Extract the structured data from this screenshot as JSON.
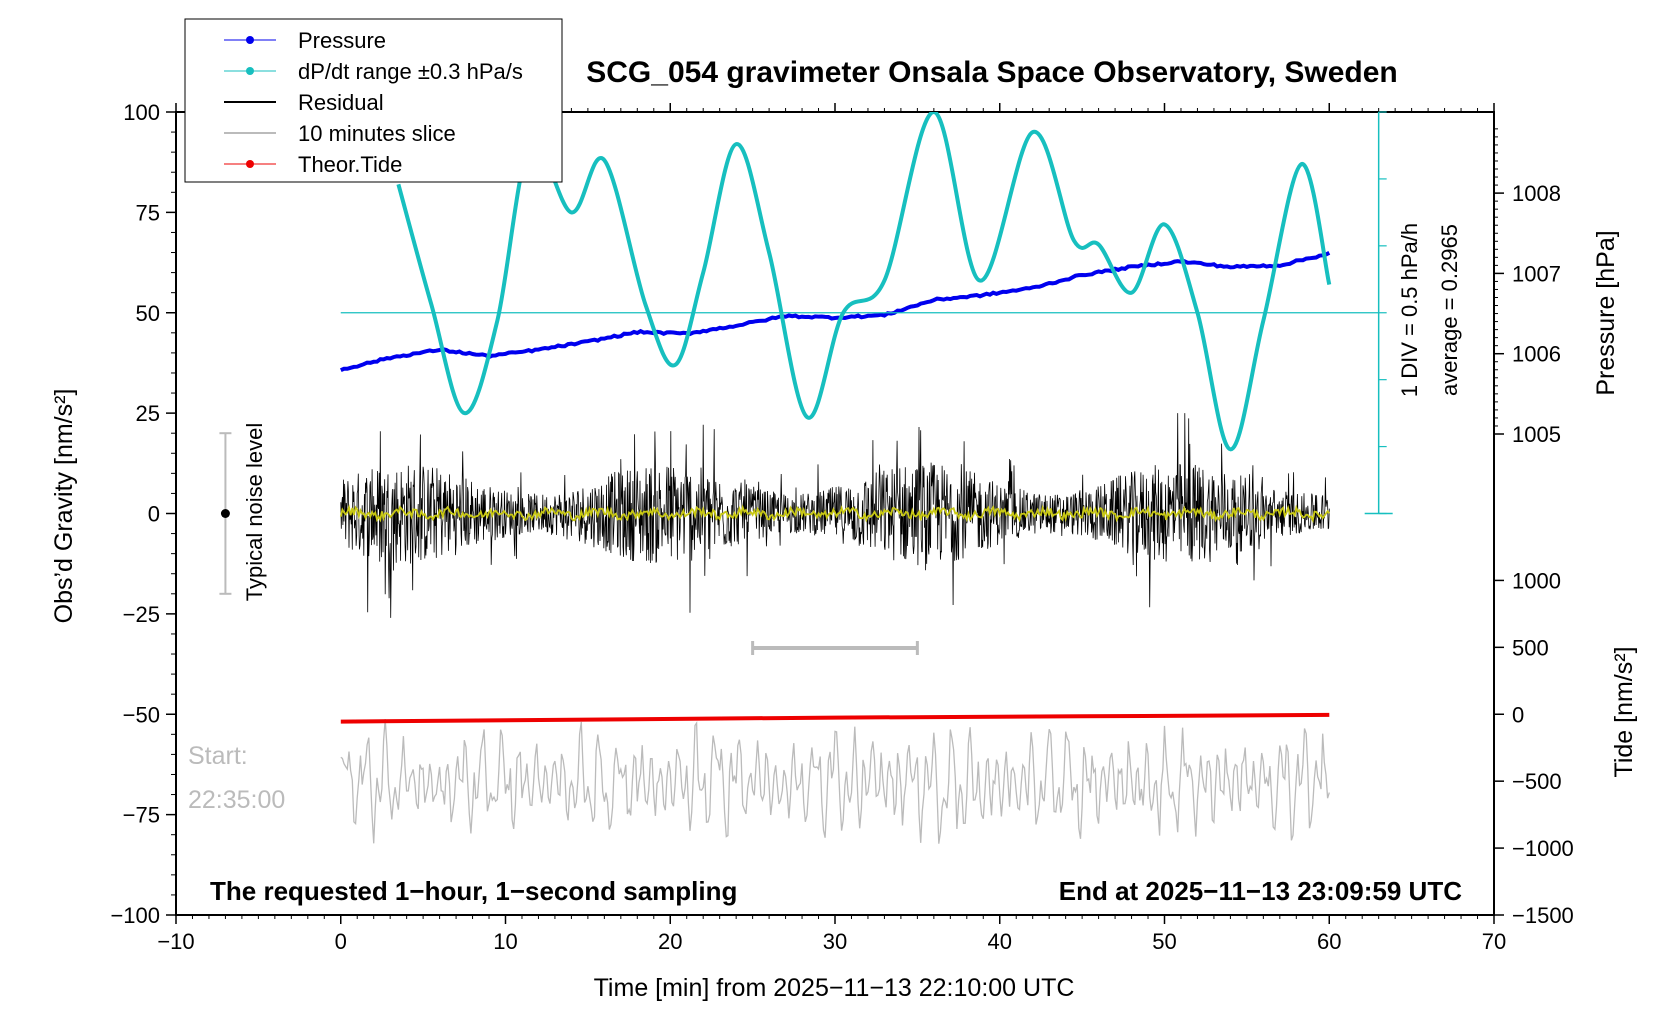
{
  "chart_data": {
    "type": "line",
    "title": "SCG_054 gravimeter Onsala Space Observatory, Sweden",
    "xlabel": "Time [min] from 2025−11−13 22:10:00 UTC",
    "ylabel_left": "Obs’d Gravity [nm/s²]",
    "ylabel_right_top": "Pressure [hPa]",
    "ylabel_right_bottom": "Tide [nm/s²]",
    "xlim": [
      -10,
      70
    ],
    "ylim": [
      -100,
      100
    ],
    "x_ticks": [
      "−10",
      "0",
      "10",
      "20",
      "30",
      "40",
      "50",
      "60",
      "70"
    ],
    "x_tick_values": [
      -10,
      0,
      10,
      20,
      30,
      40,
      50,
      60,
      70
    ],
    "y_ticks": [
      "100",
      "75",
      "50",
      "25",
      "0",
      "−25",
      "−50",
      "−75",
      "−100"
    ],
    "y_tick_values": [
      100,
      75,
      50,
      25,
      0,
      -25,
      -50,
      -75,
      -100
    ],
    "pressure_axis": {
      "ticks": [
        "1008",
        "1007",
        "1006",
        "1005"
      ],
      "tick_values": [
        1008,
        1007,
        1006,
        1005
      ],
      "map": {
        "hpa_a": 1005,
        "grav_a": 19.8,
        "hpa_b": 1008,
        "grav_b": 79.8
      }
    },
    "tide_axis": {
      "ticks": [
        "1000",
        "500",
        "0",
        "−500",
        "−1000",
        "−1500"
      ],
      "tick_values": [
        1000,
        500,
        0,
        -500,
        -1000,
        -1500
      ],
      "map": {
        "tide_a": 0,
        "grav_a": -50,
        "tide_b": -1500,
        "grav_b": -100
      }
    },
    "dpdt_scale": {
      "label_div": "1 DIV = 0.5 hPa/h",
      "label_avg": "average = 0.2965",
      "baseline": 50,
      "div_count": 6
    },
    "noise_bar": {
      "label": "Typical noise level",
      "x": -7,
      "low": -20,
      "high": 20,
      "center": 0
    },
    "slice_bar": {
      "x_start": 25,
      "x_end": 35,
      "y": -33.5
    },
    "series": [
      {
        "name": "Pressure",
        "unit": "hPa",
        "color": "#0000ee",
        "x": [
          0,
          3,
          6,
          9,
          12,
          15,
          18,
          21,
          24,
          27,
          30,
          33,
          36,
          39,
          42,
          45,
          48,
          51,
          54,
          57,
          60
        ],
        "values": [
          1005.8,
          1005.95,
          1006.05,
          1005.97,
          1006.05,
          1006.15,
          1006.27,
          1006.25,
          1006.35,
          1006.47,
          1006.45,
          1006.48,
          1006.67,
          1006.73,
          1006.82,
          1006.98,
          1007.08,
          1007.15,
          1007.08,
          1007.1,
          1007.25
        ]
      },
      {
        "name": "dP/dt range ±0.3 hPa/s",
        "color": "#17bfbf",
        "x": [
          3.5,
          5.5,
          7.5,
          9.5,
          11.5,
          14,
          16,
          18.5,
          20.3,
          22,
          24,
          26,
          28.3,
          30.5,
          33,
          36,
          38.8,
          42,
          44.5,
          46,
          48,
          50,
          52,
          54,
          56,
          58.3,
          60
        ],
        "values": [
          82,
          52,
          25,
          48,
          92,
          75,
          88,
          52,
          37,
          60,
          92,
          65,
          24,
          50,
          58,
          100,
          58,
          95,
          68,
          67,
          55,
          72,
          50,
          16,
          48,
          87,
          57
        ]
      },
      {
        "name": "Residual",
        "color": "#000000"
      },
      {
        "name": "10 minutes slice",
        "color": "#bbbbbb"
      },
      {
        "name": "Theor.Tide",
        "unit": "nm/s²",
        "color": "#ee0000",
        "x": [
          0,
          15,
          30,
          45,
          60
        ],
        "values": [
          -55,
          -40,
          -25,
          -15,
          -5
        ]
      }
    ],
    "annotations": {
      "bottom_left": "The requested 1−hour, 1−second sampling",
      "bottom_right": "End at 2025−11−13 23:09:59 UTC",
      "start_label": "Start:",
      "start_time": "22:35:00"
    },
    "colors": {
      "pressure": "#0000ee",
      "dpdt": "#17bfbf",
      "residual": "#000000",
      "slice": "#bbbbbb",
      "tide": "#ee0000",
      "smoothed": "#c8c814",
      "noise": "#bbbbbb"
    }
  }
}
